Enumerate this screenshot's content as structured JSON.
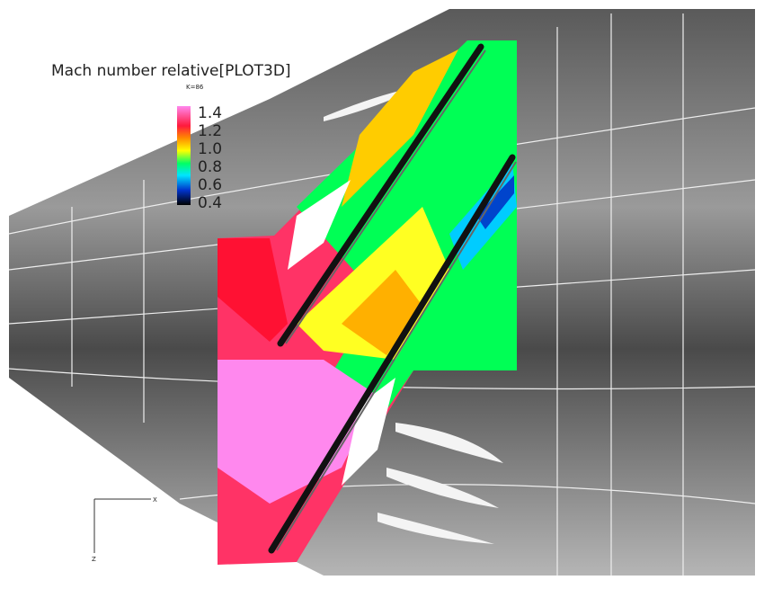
{
  "legend": {
    "title": "Mach number relative[PLOT3D]",
    "subtitle": "K=86",
    "levels": [
      "1.4",
      "1.2",
      "1.0",
      "0.8",
      "0.6",
      "0.4"
    ]
  },
  "axes": {
    "horizontal": "X",
    "vertical": "Z"
  }
}
